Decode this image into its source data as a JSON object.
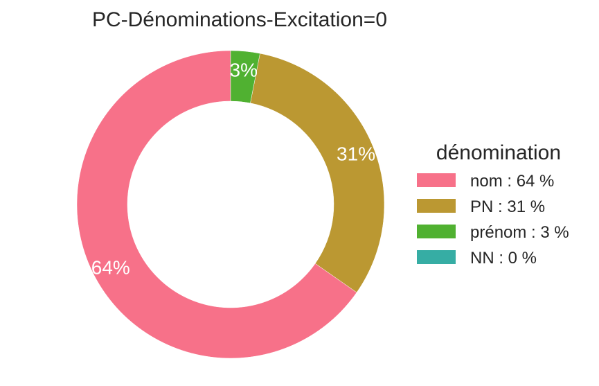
{
  "chart_data": {
    "type": "pie",
    "variant": "donut",
    "title": "PC-Dénominations-Excitation=0",
    "categories": [
      "nom",
      "PN",
      "prénom",
      "NN"
    ],
    "values": [
      64,
      31,
      3,
      0
    ],
    "slice_labels": [
      "64%",
      "31%",
      "3%",
      ""
    ],
    "colors": [
      "#f77189",
      "#bb9832",
      "#50b131",
      "#36ada4"
    ],
    "start_angle_deg": 90,
    "direction": "clockwise-from-top, counter-clockwise order: nom, PN, prénom",
    "legend": {
      "title": "dénomination",
      "placement": "right",
      "entries": [
        "nom : 64 %",
        "PN : 31 %",
        "prénom : 3 %",
        "NN : 0 %"
      ]
    }
  }
}
